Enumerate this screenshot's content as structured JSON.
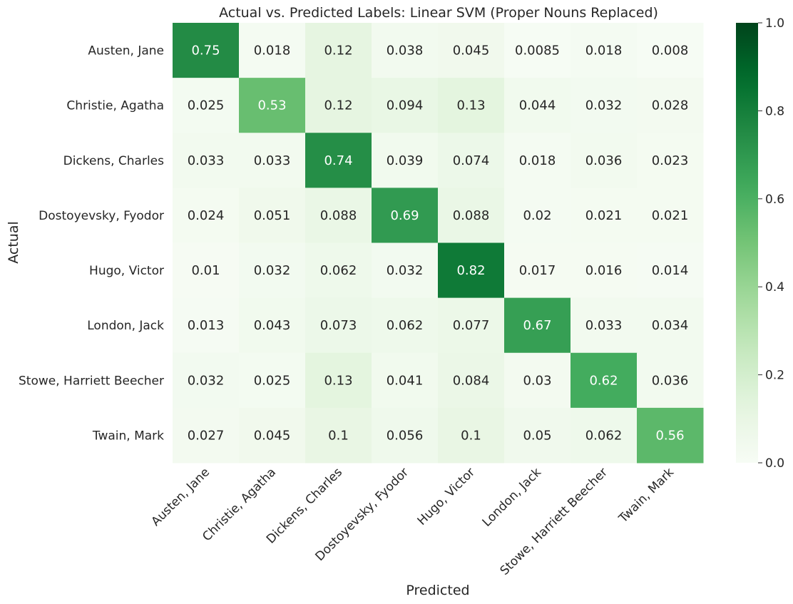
{
  "chart_data": {
    "type": "heatmap",
    "title": "Actual vs. Predicted Labels: Linear SVM (Proper Nouns Replaced)",
    "xlabel": "Predicted",
    "ylabel": "Actual",
    "x_categories": [
      "Austen, Jane",
      "Christie, Agatha",
      "Dickens, Charles",
      "Dostoyevsky, Fyodor",
      "Hugo, Victor",
      "London, Jack",
      "Stowe, Harriett Beecher",
      "Twain, Mark"
    ],
    "y_categories": [
      "Austen, Jane",
      "Christie, Agatha",
      "Dickens, Charles",
      "Dostoyevsky, Fyodor",
      "Hugo, Victor",
      "London, Jack",
      "Stowe, Harriett Beecher",
      "Twain, Mark"
    ],
    "values": [
      [
        0.75,
        0.018,
        0.12,
        0.038,
        0.045,
        0.0085,
        0.018,
        0.008
      ],
      [
        0.025,
        0.53,
        0.12,
        0.094,
        0.13,
        0.044,
        0.032,
        0.028
      ],
      [
        0.033,
        0.033,
        0.74,
        0.039,
        0.074,
        0.018,
        0.036,
        0.023
      ],
      [
        0.024,
        0.051,
        0.088,
        0.69,
        0.088,
        0.02,
        0.021,
        0.021
      ],
      [
        0.01,
        0.032,
        0.062,
        0.032,
        0.82,
        0.017,
        0.016,
        0.014
      ],
      [
        0.013,
        0.043,
        0.073,
        0.062,
        0.077,
        0.67,
        0.033,
        0.034
      ],
      [
        0.032,
        0.025,
        0.13,
        0.041,
        0.084,
        0.03,
        0.62,
        0.036
      ],
      [
        0.027,
        0.045,
        0.1,
        0.056,
        0.1,
        0.05,
        0.062,
        0.56
      ]
    ],
    "value_labels": [
      [
        "0.75",
        "0.018",
        "0.12",
        "0.038",
        "0.045",
        "0.0085",
        "0.018",
        "0.008"
      ],
      [
        "0.025",
        "0.53",
        "0.12",
        "0.094",
        "0.13",
        "0.044",
        "0.032",
        "0.028"
      ],
      [
        "0.033",
        "0.033",
        "0.74",
        "0.039",
        "0.074",
        "0.018",
        "0.036",
        "0.023"
      ],
      [
        "0.024",
        "0.051",
        "0.088",
        "0.69",
        "0.088",
        "0.02",
        "0.021",
        "0.021"
      ],
      [
        "0.01",
        "0.032",
        "0.062",
        "0.032",
        "0.82",
        "0.017",
        "0.016",
        "0.014"
      ],
      [
        "0.013",
        "0.043",
        "0.073",
        "0.062",
        "0.077",
        "0.67",
        "0.033",
        "0.034"
      ],
      [
        "0.032",
        "0.025",
        "0.13",
        "0.041",
        "0.084",
        "0.03",
        "0.62",
        "0.036"
      ],
      [
        "0.027",
        "0.045",
        "0.1",
        "0.056",
        "0.1",
        "0.05",
        "0.062",
        "0.56"
      ]
    ],
    "colormap": "Greens",
    "colorbar": {
      "range": [
        0.0,
        1.0
      ],
      "ticks": [
        "0.0",
        "0.2",
        "0.4",
        "0.6",
        "0.8",
        "1.0"
      ]
    },
    "x_tick_rotation": 45,
    "grid": false
  }
}
